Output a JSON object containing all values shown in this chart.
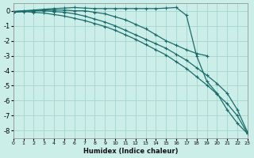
{
  "xlabel": "Humidex (Indice chaleur)",
  "bg_color": "#cceee8",
  "grid_color": "#aad8d0",
  "line_color": "#1a6b6b",
  "xlim": [
    0,
    23
  ],
  "ylim": [
    -8.5,
    0.5
  ],
  "yticks": [
    0,
    -1,
    -2,
    -3,
    -4,
    -5,
    -6,
    -7,
    -8
  ],
  "xticks": [
    0,
    1,
    2,
    3,
    4,
    5,
    6,
    7,
    8,
    9,
    10,
    11,
    12,
    13,
    14,
    15,
    16,
    17,
    18,
    19,
    20,
    21,
    22,
    23
  ],
  "lines": [
    {
      "x": [
        0,
        1,
        2,
        3,
        4,
        5,
        6,
        7,
        8,
        9,
        10,
        11,
        12,
        13,
        14,
        15,
        16,
        17,
        18,
        19,
        20,
        21,
        22,
        23
      ],
      "y": [
        -0.05,
        0.0,
        0.05,
        0.1,
        0.15,
        0.18,
        0.22,
        0.18,
        0.15,
        0.15,
        0.15,
        0.15,
        0.15,
        0.15,
        0.15,
        0.18,
        0.22,
        -0.3,
        -3.0,
        -4.7,
        -5.5,
        -6.6,
        -7.5,
        -8.2
      ]
    },
    {
      "x": [
        0,
        1,
        2,
        3,
        4,
        5,
        6,
        7,
        8,
        9,
        10,
        11,
        12,
        13,
        14,
        15,
        16,
        17,
        18,
        19
      ],
      "y": [
        -0.1,
        -0.05,
        0.0,
        0.05,
        0.05,
        0.05,
        0.0,
        0.0,
        -0.1,
        -0.2,
        -0.4,
        -0.6,
        -0.9,
        -1.2,
        -1.6,
        -2.0,
        -2.3,
        -2.6,
        -2.85,
        -3.0
      ]
    },
    {
      "x": [
        0,
        1,
        2,
        3,
        4,
        5,
        6,
        7,
        8,
        9,
        10,
        11,
        12,
        13,
        14,
        15,
        16,
        17,
        18,
        19,
        20,
        21,
        22,
        23
      ],
      "y": [
        -0.05,
        0.0,
        0.0,
        0.0,
        -0.05,
        -0.1,
        -0.2,
        -0.35,
        -0.55,
        -0.75,
        -1.0,
        -1.3,
        -1.6,
        -1.9,
        -2.2,
        -2.5,
        -2.9,
        -3.3,
        -3.8,
        -4.3,
        -4.85,
        -5.5,
        -6.6,
        -8.1
      ]
    },
    {
      "x": [
        0,
        1,
        2,
        3,
        4,
        5,
        6,
        7,
        8,
        9,
        10,
        11,
        12,
        13,
        14,
        15,
        16,
        17,
        18,
        19,
        20,
        21,
        22,
        23
      ],
      "y": [
        -0.1,
        -0.05,
        -0.1,
        -0.15,
        -0.25,
        -0.35,
        -0.5,
        -0.65,
        -0.85,
        -1.05,
        -1.3,
        -1.6,
        -1.9,
        -2.25,
        -2.6,
        -2.95,
        -3.4,
        -3.85,
        -4.4,
        -4.95,
        -5.55,
        -6.2,
        -7.0,
        -8.2
      ]
    }
  ]
}
